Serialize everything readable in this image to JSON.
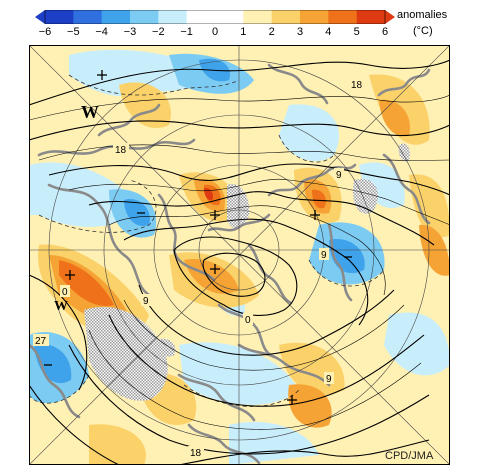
{
  "legend": {
    "title": "anomalies",
    "unit": "(°C)",
    "ticks": [
      "−6",
      "−5",
      "−4",
      "−3",
      "−2",
      "−1",
      "0",
      "1",
      "2",
      "3",
      "4",
      "5",
      "6"
    ],
    "colors": [
      "#1d3fc8",
      "#2f6fe0",
      "#3fa3ec",
      "#7ccbf3",
      "#c9eefb",
      "#ffffff",
      "#ffffff",
      "#fff0b4",
      "#fbd26a",
      "#f5a335",
      "#ef7119",
      "#de3b12"
    ]
  },
  "map": {
    "contour_labels": [
      "18",
      "18",
      "9",
      "9",
      "0",
      "0",
      "9",
      "27",
      "9",
      "18"
    ],
    "markers": [
      "W",
      "W"
    ],
    "colors": {
      "land_outline": "#8a8a8a",
      "contour": "#000000",
      "background_warm": "#fff0b4",
      "cool_light": "#c9eefb",
      "cool_mid": "#7ccbf3",
      "cool_strong": "#3fa3ec",
      "warm_mid": "#fbd26a",
      "warm_strong": "#f5a335",
      "warm_hot": "#ef7119",
      "warm_hottest": "#de3b12",
      "highland_hatch": "#9a9a9a"
    }
  },
  "credit": "CPD/JMA"
}
